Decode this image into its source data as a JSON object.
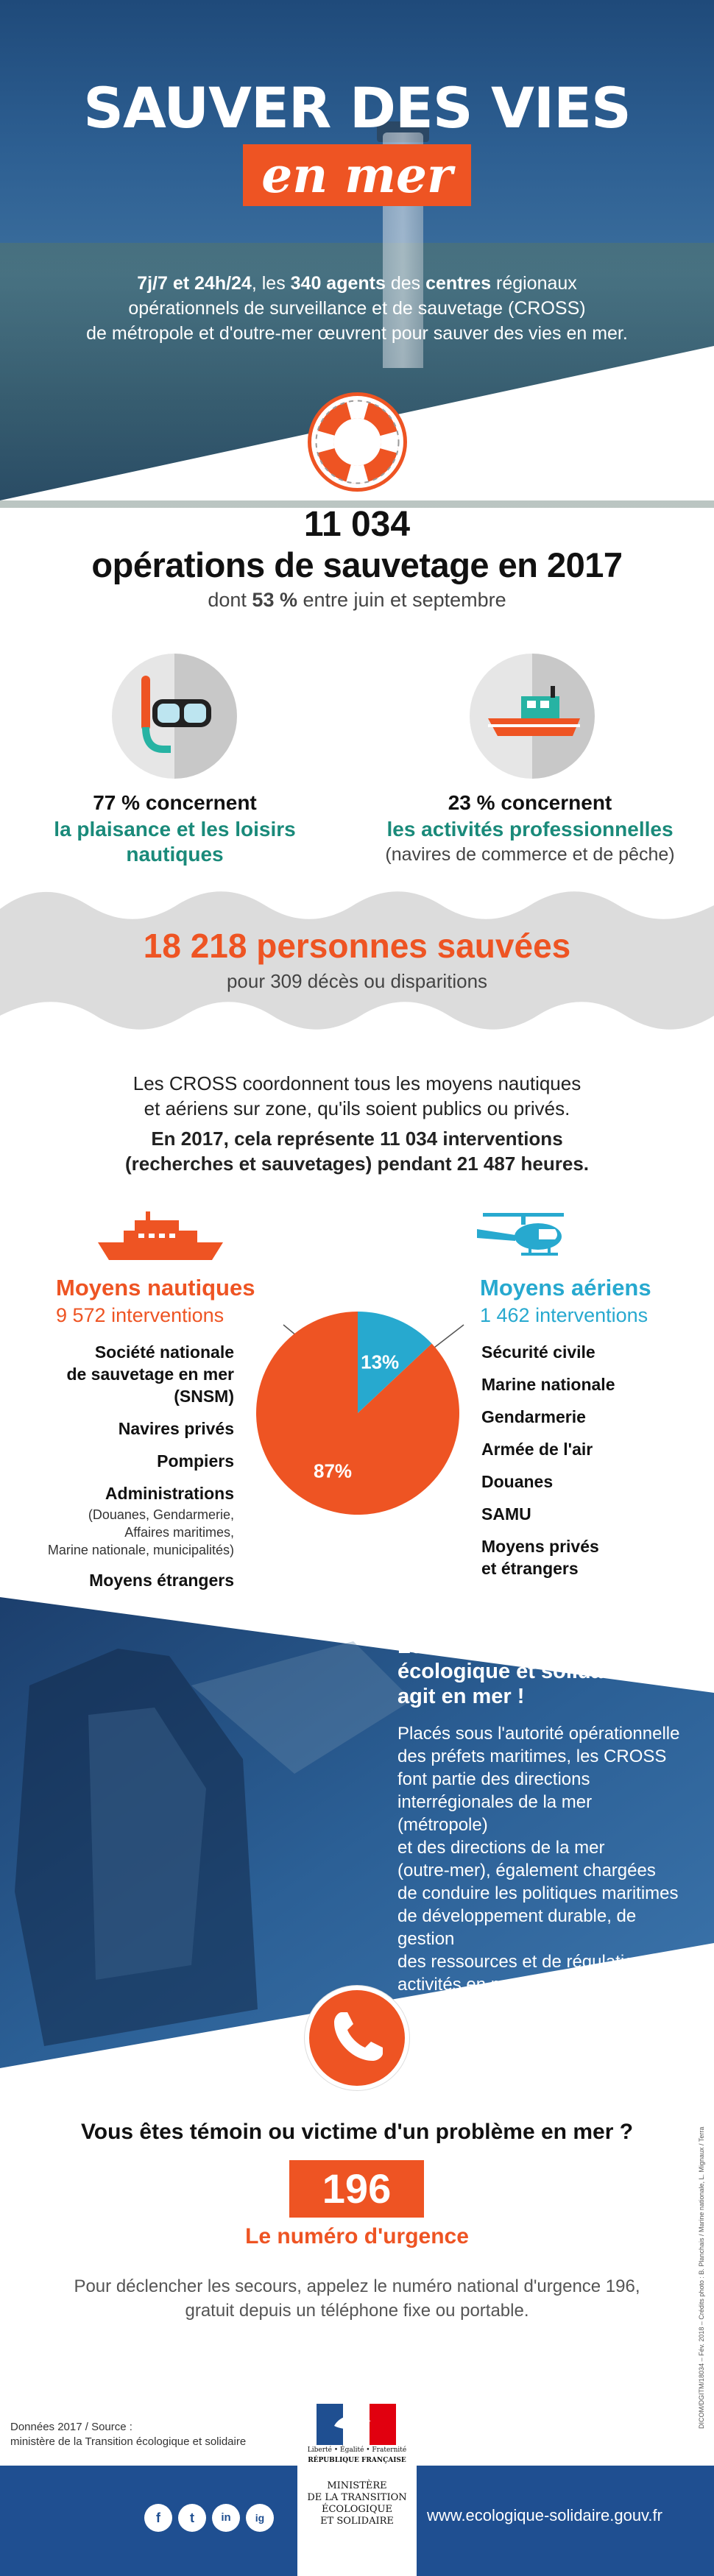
{
  "hero": {
    "title_line1": "SAUVER DES VIES",
    "title_line2": "en mer",
    "intro_parts": [
      "7j/7 et 24h/24",
      ", les ",
      "340 agents",
      " des ",
      "centres",
      " régionaux",
      "opérationnels de surveillance et de sauvetage (CROSS)",
      "de métropole et d'outre-mer œuvrent pour sauver des vies en mer."
    ]
  },
  "operations": {
    "number": "11 034",
    "label": "opérations de sauvetage en 2017",
    "sub_prefix": "dont ",
    "sub_bold": "53 %",
    "sub_suffix": " entre juin et septembre"
  },
  "split": {
    "left": {
      "icon": "diving-mask-icon",
      "pct": "77 % concernent",
      "line1": "la plaisance et les loisirs",
      "line2": "nautiques"
    },
    "right": {
      "icon": "fishing-boat-icon",
      "pct": "23 % concernent",
      "line1": "les activités professionnelles",
      "line2": "(navires de commerce et de pêche)"
    }
  },
  "saved": {
    "number": "18 218 personnes sauvées",
    "sub": "pour 309 décès ou disparitions"
  },
  "coordination": {
    "line1": "Les CROSS coordonnent tous les moyens nautiques",
    "line2": "et aériens sur zone, qu'ils soient publics ou privés.",
    "line3": "En 2017, cela représente 11 034 interventions",
    "line4": "(recherches et sauvetages) pendant 21 487 heures."
  },
  "means": {
    "nautical": {
      "title": "Moyens nautiques",
      "count": "9 572 interventions",
      "items": [
        {
          "label": "Société nationale",
          "label2": "de sauvetage en mer",
          "label3": "(SNSM)"
        },
        {
          "label": "Navires privés"
        },
        {
          "label": "Pompiers"
        },
        {
          "label": "Administrations"
        }
      ],
      "admin_detail": [
        "(Douanes, Gendarmerie,",
        "Affaires maritimes,",
        "Marine nationale, municipalités)"
      ],
      "last": "Moyens étrangers"
    },
    "aerial": {
      "title": "Moyens aériens",
      "count": "1 462 interventions",
      "items": [
        "Sécurité civile",
        "Marine nationale",
        "Gendarmerie",
        "Armée de l'air",
        "Douanes",
        "SAMU",
        "Moyens privés",
        "et étrangers"
      ]
    }
  },
  "chart_data": {
    "type": "pie",
    "labels": [
      "87%",
      "13%"
    ],
    "values": [
      87,
      13
    ],
    "colors": [
      "#ee5423",
      "#27a9cf"
    ]
  },
  "ministry": {
    "title_lines": [
      "Le ministère de la Transition",
      "écologique et solidaire",
      "agit en mer !"
    ],
    "text_lines": [
      "Placés sous l'autorité opérationnelle",
      "des préfets maritimes, les CROSS",
      "font partie des directions",
      "interrégionales de la mer (métropole)",
      "et des directions de la mer",
      "(outre-mer), également chargées",
      "de conduire les politiques maritimes",
      "de développement durable, de gestion",
      "des ressources et de régulation des",
      "activités en mer."
    ]
  },
  "emergency": {
    "question": "Vous êtes témoin ou victime d'un problème en mer ?",
    "number": "196",
    "label": "Le numéro d'urgence",
    "desc1": "Pour déclencher les secours, appelez le numéro national d'urgence 196,",
    "desc2": "gratuit depuis un téléphone fixe ou portable."
  },
  "credits": "DICOM/DGITM/18034 – Fév. 2018 – Crédits photo : B. Planchais / Marine nationale, L. Mignaux / Terra",
  "source": {
    "line1": "Données 2017 / Source :",
    "line2": "ministère de la Transition écologique et solidaire"
  },
  "logo": {
    "rf_line1": "Liberté • Égalité • Fraternité",
    "rf_line2": "RÉPUBLIQUE FRANÇAISE",
    "ministry_lines": [
      "MINISTÈRE",
      "DE LA TRANSITION",
      "ÉCOLOGIQUE",
      "ET SOLIDAIRE"
    ]
  },
  "footer": {
    "social": [
      "f",
      "t",
      "in",
      "ig"
    ],
    "website": "www.ecologique-solidaire.gouv.fr"
  }
}
